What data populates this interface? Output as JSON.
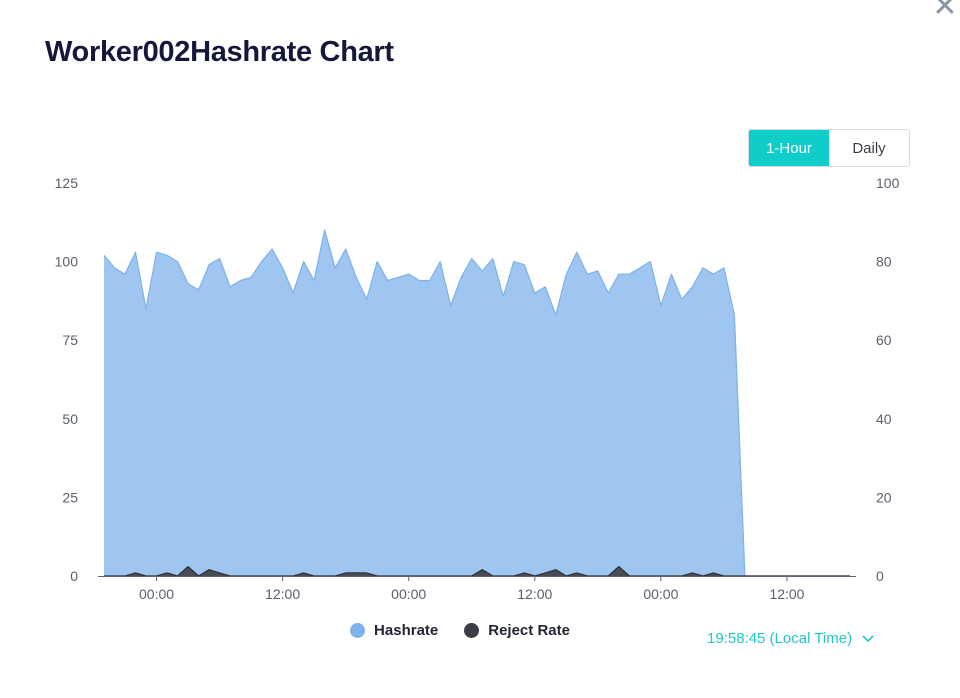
{
  "title": "Worker002Hashrate Chart",
  "close_icon": "close-icon",
  "toggle": {
    "options": [
      "1-Hour",
      "Daily"
    ],
    "active": "1-Hour"
  },
  "colors": {
    "hashrate_fill": "#9ec6f1",
    "hashrate_line": "#7eb1e8",
    "reject_fill": "#4a4c55",
    "accent": "#0fcdc9"
  },
  "chart_data": {
    "type": "area",
    "title": "Worker002Hashrate Chart",
    "y_left": {
      "ticks": [
        "0",
        "25",
        "50",
        "75",
        "100",
        "125"
      ],
      "range": [
        0,
        125
      ]
    },
    "y_right": {
      "ticks": [
        "0",
        "20",
        "40",
        "60",
        "80",
        "100"
      ],
      "range": [
        0,
        100
      ]
    },
    "x_ticks": [
      "00:00",
      "12:00",
      "00:00",
      "12:00",
      "00:00",
      "12:00"
    ],
    "x_tick_index": [
      5,
      17,
      29,
      41,
      53,
      65
    ],
    "x_count": 72,
    "series": [
      {
        "name": "Hashrate",
        "axis": "left",
        "values": [
          102,
          98,
          96,
          103,
          85,
          103,
          102,
          100,
          93,
          91,
          99,
          101,
          92,
          94,
          95,
          100,
          104,
          98,
          90,
          100,
          94,
          110,
          98,
          104,
          95,
          88,
          100,
          94,
          95,
          96,
          94,
          94,
          100,
          86,
          95,
          101,
          97,
          101,
          89,
          100,
          99,
          90,
          92,
          83,
          96,
          103,
          96,
          97,
          90,
          96,
          96,
          98,
          100,
          86,
          96,
          88,
          92,
          98,
          96,
          98,
          83,
          0,
          0,
          0,
          0,
          0,
          0,
          0,
          0,
          0,
          0,
          0
        ],
        "legend": "Hashrate"
      },
      {
        "name": "Reject Rate",
        "axis": "left",
        "values": [
          0,
          0,
          0,
          1,
          0,
          0,
          1,
          0,
          3,
          0,
          2,
          1,
          0,
          0,
          0,
          0,
          0,
          0,
          0,
          1,
          0,
          0,
          0,
          1,
          1,
          1,
          0,
          0,
          0,
          0,
          0,
          0,
          0,
          0,
          0,
          0,
          2,
          0,
          0,
          0,
          1,
          0,
          1,
          2,
          0,
          1,
          0,
          0,
          0,
          3,
          0,
          0,
          0,
          0,
          0,
          0,
          1,
          0,
          1,
          0,
          0,
          0,
          0,
          0,
          0,
          0,
          0,
          0,
          0,
          0,
          0,
          0
        ],
        "legend": "Reject Rate"
      }
    ]
  },
  "footer": {
    "time_label": "19:58:45 (Local Time)"
  }
}
